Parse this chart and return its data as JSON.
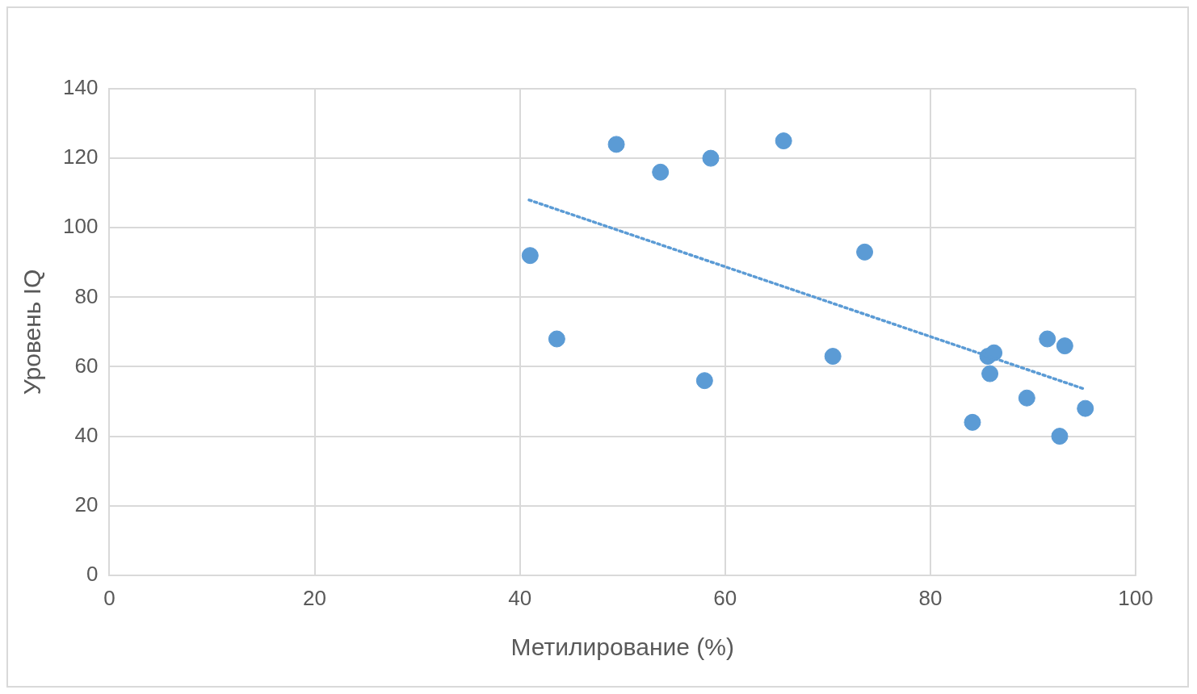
{
  "chart_data": {
    "type": "scatter",
    "xlabel": "Метилирование (%)",
    "ylabel": "Уровень IQ",
    "xlim": [
      0,
      100
    ],
    "xticks": [
      0,
      20,
      40,
      60,
      80,
      100
    ],
    "ylim": [
      0,
      140
    ],
    "yticks": [
      0,
      20,
      40,
      60,
      80,
      100,
      120,
      140
    ],
    "grid": true,
    "legend": false,
    "marker": "circle",
    "series": [
      {
        "color": "#5b9bd5",
        "x": [
          41.0,
          43.6,
          49.4,
          53.7,
          58.6,
          58.0,
          65.7,
          73.6,
          70.5,
          84.1,
          85.6,
          86.2,
          85.8,
          89.4,
          91.4,
          93.1,
          92.6,
          95.1
        ],
        "values": [
          92,
          68,
          124,
          116,
          120,
          56,
          125,
          93,
          63,
          44,
          63,
          64,
          58,
          51,
          68,
          66,
          40,
          48
        ]
      },
      {
        "type": "line",
        "color": "#5b9bd5",
        "line_style": "dotted",
        "marker": "none",
        "x": [
          40.9,
          95.1
        ],
        "values": [
          108,
          53.5
        ]
      }
    ]
  }
}
